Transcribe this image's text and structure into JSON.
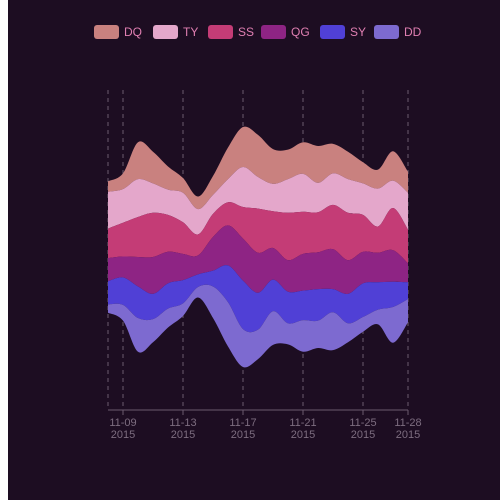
{
  "chart_data": {
    "type": "area",
    "style": "themeriver",
    "background": "#1d0d22",
    "axis_color": "#6b5a6f",
    "legend_text_color": "#e07fb2",
    "tick_label_color": "#7d6d80",
    "legend_position": "top-center",
    "grid": "dashed vertical lines at labeled dates",
    "x": [
      "2015-11-08",
      "2015-11-09",
      "2015-11-10",
      "2015-11-11",
      "2015-11-12",
      "2015-11-13",
      "2015-11-14",
      "2015-11-15",
      "2015-11-16",
      "2015-11-17",
      "2015-11-18",
      "2015-11-19",
      "2015-11-20",
      "2015-11-21",
      "2015-11-22",
      "2015-11-23",
      "2015-11-24",
      "2015-11-25",
      "2015-11-26",
      "2015-11-27",
      "2015-11-28"
    ],
    "tick_labels": [
      {
        "date": "2015-11-09",
        "line1": "11-09",
        "line2": "2015"
      },
      {
        "date": "2015-11-13",
        "line1": "11-13",
        "line2": "2015"
      },
      {
        "date": "2015-11-17",
        "line1": "11-17",
        "line2": "2015"
      },
      {
        "date": "2015-11-21",
        "line1": "11-21",
        "line2": "2015"
      },
      {
        "date": "2015-11-25",
        "line1": "11-25",
        "line2": "2015"
      },
      {
        "date": "2015-11-28",
        "line1": "11-28",
        "line2": "2015"
      }
    ],
    "series": [
      {
        "name": "DQ",
        "color": "#c9817f",
        "values": [
          10,
          15,
          35,
          30,
          22,
          14,
          12,
          18,
          30,
          38,
          40,
          33,
          28,
          30,
          35,
          28,
          26,
          20,
          18,
          28,
          20
        ]
      },
      {
        "name": "TY",
        "color": "#e4a7cb",
        "values": [
          35,
          32,
          36,
          28,
          24,
          28,
          24,
          18,
          22,
          38,
          30,
          26,
          32,
          36,
          28,
          30,
          32,
          30,
          36,
          26,
          35
        ]
      },
      {
        "name": "SS",
        "color": "#c43c76",
        "values": [
          28,
          32,
          38,
          42,
          35,
          30,
          20,
          22,
          22,
          30,
          42,
          35,
          45,
          40,
          38,
          42,
          45,
          35,
          25,
          40,
          32
        ]
      },
      {
        "name": "QG",
        "color": "#8e2484",
        "values": [
          22,
          20,
          28,
          35,
          30,
          25,
          18,
          32,
          38,
          40,
          38,
          30,
          30,
          35,
          35,
          38,
          32,
          30,
          28,
          30,
          18
        ]
      },
      {
        "name": "SY",
        "color": "#5040d6",
        "values": [
          22,
          26,
          30,
          24,
          24,
          22,
          12,
          15,
          35,
          46,
          35,
          30,
          30,
          28,
          30,
          22,
          28,
          32,
          26,
          24,
          16
        ]
      },
      {
        "name": "DD",
        "color": "#7d6ad0",
        "values": [
          8,
          15,
          32,
          22,
          18,
          12,
          10,
          30,
          42,
          36,
          28,
          32,
          20,
          30,
          26,
          36,
          18,
          14,
          14,
          34,
          22
        ]
      }
    ]
  }
}
